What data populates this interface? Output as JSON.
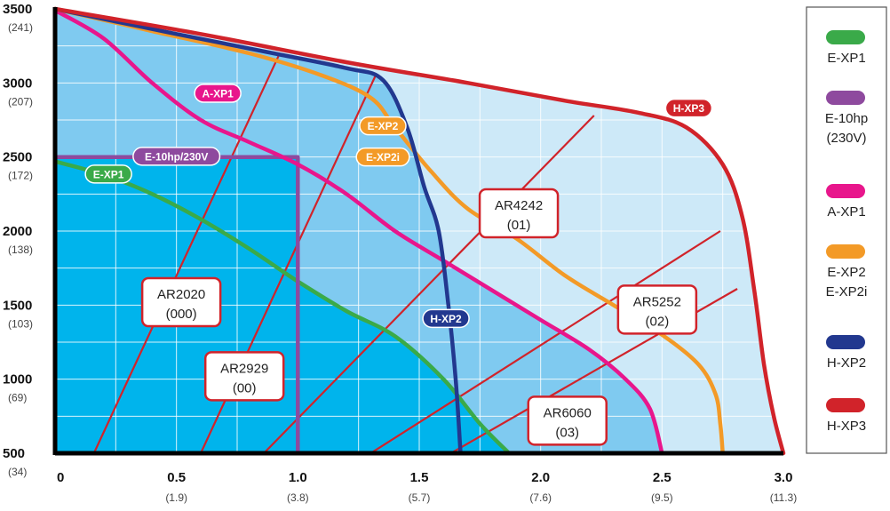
{
  "chart_data": {
    "type": "line",
    "xlim": [
      0,
      3.0
    ],
    "ylim": [
      500,
      3500
    ],
    "x_ticks": [
      {
        "value": 0,
        "label": "0",
        "sub": ""
      },
      {
        "value": 0.5,
        "label": "0.5",
        "sub": "(1.9)"
      },
      {
        "value": 1.0,
        "label": "1.0",
        "sub": "(3.8)"
      },
      {
        "value": 1.5,
        "label": "1.5",
        "sub": "(5.7)"
      },
      {
        "value": 2.0,
        "label": "2.0",
        "sub": "(7.6)"
      },
      {
        "value": 2.5,
        "label": "2.5",
        "sub": "(9.5)"
      },
      {
        "value": 3.0,
        "label": "3.0",
        "sub": "(11.3)"
      }
    ],
    "y_ticks": [
      {
        "value": 3500,
        "label": "3500",
        "sub": "(241)"
      },
      {
        "value": 3000,
        "label": "3000",
        "sub": "(207)"
      },
      {
        "value": 2500,
        "label": "2500",
        "sub": "(172)"
      },
      {
        "value": 2000,
        "label": "2000",
        "sub": "(138)"
      },
      {
        "value": 1500,
        "label": "1500",
        "sub": "(103)"
      },
      {
        "value": 1000,
        "label": "1000",
        "sub": "(69)"
      },
      {
        "value": 500,
        "label": "500",
        "sub": "(34)"
      }
    ],
    "series": [
      {
        "name": "E-XP1",
        "label": "E-XP1",
        "color": "#3aaa49",
        "points": [
          [
            0,
            2470
          ],
          [
            0.2,
            2380
          ],
          [
            0.4,
            2250
          ],
          [
            0.6,
            2080
          ],
          [
            0.8,
            1880
          ],
          [
            1.0,
            1660
          ],
          [
            1.2,
            1460
          ],
          [
            1.4,
            1290
          ],
          [
            1.6,
            1000
          ],
          [
            1.75,
            700
          ],
          [
            1.87,
            500
          ]
        ]
      },
      {
        "name": "E-10hp (230V)",
        "label": "E-10hp/230V",
        "color": "#8e4a9e",
        "points": [
          [
            0,
            2500
          ],
          [
            1.0,
            2500
          ],
          [
            1.0,
            500
          ]
        ]
      },
      {
        "name": "A-XP1",
        "label": "A-XP1",
        "color": "#e8168c",
        "points": [
          [
            0,
            3490
          ],
          [
            0.2,
            3300
          ],
          [
            0.4,
            3000
          ],
          [
            0.6,
            2750
          ],
          [
            0.8,
            2600
          ],
          [
            1.0,
            2450
          ],
          [
            1.2,
            2250
          ],
          [
            1.4,
            2000
          ],
          [
            1.6,
            1800
          ],
          [
            1.8,
            1600
          ],
          [
            2.0,
            1400
          ],
          [
            2.2,
            1200
          ],
          [
            2.35,
            1000
          ],
          [
            2.45,
            800
          ],
          [
            2.5,
            500
          ]
        ]
      },
      {
        "name": "E-XP2 E-XP2i",
        "label": "E-XP2",
        "label2": "E-XP2i",
        "color": "#f39a27",
        "points": [
          [
            0,
            3500
          ],
          [
            0.4,
            3350
          ],
          [
            0.8,
            3200
          ],
          [
            1.1,
            3050
          ],
          [
            1.3,
            2900
          ],
          [
            1.4,
            2700
          ],
          [
            1.55,
            2400
          ],
          [
            1.7,
            2150
          ],
          [
            1.9,
            1950
          ],
          [
            2.1,
            1700
          ],
          [
            2.3,
            1500
          ],
          [
            2.5,
            1300
          ],
          [
            2.65,
            1100
          ],
          [
            2.72,
            900
          ],
          [
            2.74,
            700
          ],
          [
            2.75,
            500
          ]
        ]
      },
      {
        "name": "H-XP2",
        "label": "H-XP2",
        "color": "#22388f",
        "points": [
          [
            0,
            3500
          ],
          [
            0.5,
            3330
          ],
          [
            0.9,
            3200
          ],
          [
            1.2,
            3100
          ],
          [
            1.35,
            3020
          ],
          [
            1.45,
            2700
          ],
          [
            1.52,
            2300
          ],
          [
            1.58,
            2000
          ],
          [
            1.62,
            1500
          ],
          [
            1.65,
            1000
          ],
          [
            1.67,
            500
          ]
        ]
      },
      {
        "name": "H-XP3",
        "label": "H-XP3",
        "color": "#d1232a",
        "points": [
          [
            0,
            3500
          ],
          [
            0.6,
            3330
          ],
          [
            1.2,
            3140
          ],
          [
            1.7,
            3000
          ],
          [
            2.1,
            2880
          ],
          [
            2.4,
            2800
          ],
          [
            2.6,
            2700
          ],
          [
            2.75,
            2450
          ],
          [
            2.83,
            2100
          ],
          [
            2.88,
            1600
          ],
          [
            2.92,
            1100
          ],
          [
            2.96,
            750
          ],
          [
            3.0,
            500
          ]
        ]
      }
    ],
    "system_curves": [
      {
        "label": "AR2020",
        "code": "(000)",
        "points": [
          [
            0.16,
            500
          ],
          [
            0.92,
            3180
          ]
        ]
      },
      {
        "label": "AR2929",
        "code": "(00)",
        "points": [
          [
            0.6,
            500
          ],
          [
            1.32,
            3050
          ]
        ]
      },
      {
        "label": "AR4242",
        "code": "(01)",
        "points": [
          [
            0.86,
            500
          ],
          [
            2.22,
            2780
          ]
        ]
      },
      {
        "label": "AR5252",
        "code": "(02)",
        "points": [
          [
            1.3,
            500
          ],
          [
            2.74,
            2000
          ]
        ]
      },
      {
        "label": "AR6060",
        "code": "(03)",
        "points": [
          [
            1.63,
            500
          ],
          [
            2.81,
            1610
          ]
        ]
      }
    ]
  },
  "legend": [
    {
      "name": "E-XP1",
      "lines": [
        "E-XP1"
      ],
      "color": "#3aaa49"
    },
    {
      "name": "E-10hp (230V)",
      "lines": [
        "E-10hp",
        "(230V)"
      ],
      "color": "#8e4a9e"
    },
    {
      "name": "A-XP1",
      "lines": [
        "A-XP1"
      ],
      "color": "#e8168c"
    },
    {
      "name": "E-XP2 E-XP2i",
      "lines": [
        "E-XP2",
        "E-XP2i"
      ],
      "color": "#f39a27"
    },
    {
      "name": "H-XP2",
      "lines": [
        "H-XP2"
      ],
      "color": "#22388f"
    },
    {
      "name": "H-XP3",
      "lines": [
        "H-XP3"
      ],
      "color": "#d1232a"
    }
  ],
  "colors": {
    "area_outer": "#cde9f8",
    "area_mid": "#7fcaf0",
    "area_inner": "#00b4ec",
    "system_line": "#d1232a",
    "grid": "#ffffff"
  }
}
